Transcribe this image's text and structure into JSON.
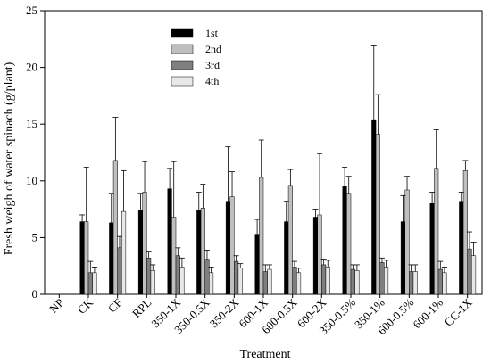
{
  "chart_data": {
    "type": "bar",
    "title": "",
    "xlabel": "Treatment",
    "ylabel": "Fresh weigh of water spinach (g/plant)",
    "ylim": [
      0,
      25
    ],
    "yticks": [
      0,
      5,
      10,
      15,
      20,
      25
    ],
    "grid": false,
    "legend_position": "top-left",
    "categories": [
      "NP",
      "CK",
      "CF",
      "RPL",
      "350-1X",
      "350-0.5X",
      "350-2X",
      "600-1X",
      "600-0.5X",
      "600-2X",
      "350-0.5%",
      "350-1%",
      "600-0.5%",
      "600-1%",
      "CC-1X"
    ],
    "series": [
      {
        "name": "1st",
        "color": "#000000",
        "values": [
          0,
          6.4,
          6.3,
          7.4,
          9.3,
          7.4,
          8.2,
          5.3,
          6.4,
          6.8,
          9.5,
          15.4,
          6.4,
          8.0,
          8.2
        ],
        "errors": [
          0,
          0.6,
          2.6,
          1.5,
          1.8,
          1.6,
          4.8,
          1.3,
          1.8,
          0.7,
          1.7,
          6.5,
          2.3,
          1.0,
          0.8
        ]
      },
      {
        "name": "2nd",
        "color": "#bfbfbf",
        "values": [
          0,
          6.4,
          11.8,
          9.0,
          6.8,
          7.6,
          8.6,
          10.3,
          9.6,
          7.0,
          8.9,
          14.1,
          9.2,
          11.1,
          10.9
        ],
        "errors": [
          0,
          4.8,
          3.8,
          2.7,
          4.9,
          2.1,
          2.2,
          3.3,
          1.4,
          5.4,
          1.5,
          3.5,
          1.2,
          3.4,
          0.9
        ]
      },
      {
        "name": "3rd",
        "color": "#7f7f7f",
        "values": [
          0,
          1.9,
          4.1,
          3.2,
          3.4,
          3.1,
          2.9,
          2.0,
          2.4,
          2.6,
          2.2,
          2.8,
          2.0,
          2.2,
          4.0
        ],
        "errors": [
          0,
          1.0,
          1.0,
          0.6,
          0.7,
          0.8,
          0.5,
          0.6,
          0.5,
          0.5,
          0.4,
          0.4,
          0.6,
          0.7,
          1.5
        ]
      },
      {
        "name": "4th",
        "color": "#e8e8e8",
        "values": [
          0,
          1.9,
          7.3,
          2.1,
          2.4,
          1.9,
          2.3,
          2.2,
          1.9,
          2.4,
          2.1,
          2.4,
          2.0,
          1.9,
          3.4
        ],
        "errors": [
          0,
          0.5,
          3.6,
          0.5,
          0.8,
          0.5,
          0.4,
          0.4,
          0.4,
          0.6,
          0.5,
          0.6,
          0.6,
          0.5,
          1.2
        ]
      }
    ]
  }
}
